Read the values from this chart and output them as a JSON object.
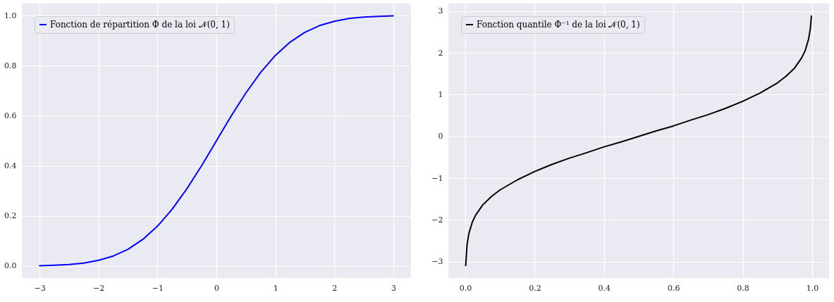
{
  "chart_data": [
    {
      "type": "line",
      "x": [
        -3,
        -2.75,
        -2.5,
        -2.25,
        -2,
        -1.75,
        -1.5,
        -1.25,
        -1,
        -0.75,
        -0.5,
        -0.25,
        0,
        0.25,
        0.5,
        0.75,
        1,
        1.25,
        1.5,
        1.75,
        2,
        2.25,
        2.5,
        2.75,
        3
      ],
      "series": [
        {
          "name": "Fonction de répartition Φ de la loi 𝒩(0, 1)",
          "color": "#0000ff",
          "values": [
            0.001,
            0.003,
            0.006,
            0.012,
            0.023,
            0.04,
            0.067,
            0.106,
            0.159,
            0.227,
            0.309,
            0.401,
            0.5,
            0.599,
            0.691,
            0.773,
            0.841,
            0.894,
            0.933,
            0.96,
            0.977,
            0.988,
            0.994,
            0.997,
            0.999
          ]
        }
      ],
      "xlim": [
        -3.3,
        3.3
      ],
      "ylim": [
        -0.048,
        1.048
      ],
      "xticks": [
        {
          "value": -3,
          "label": "−3"
        },
        {
          "value": -2,
          "label": "−2"
        },
        {
          "value": -1,
          "label": "−1"
        },
        0,
        1,
        2,
        3
      ],
      "yticks": [
        {
          "value": 0,
          "label": "0.0"
        },
        0.2,
        0.4,
        0.6,
        0.8,
        {
          "value": 1,
          "label": "1.0"
        }
      ],
      "grid": true,
      "legend": "top left",
      "marker": "none",
      "line_style": "solid"
    },
    {
      "type": "line",
      "x": [
        0.001,
        0.005,
        0.01,
        0.02,
        0.03,
        0.05,
        0.075,
        0.1,
        0.15,
        0.2,
        0.25,
        0.3,
        0.35,
        0.4,
        0.45,
        0.5,
        0.55,
        0.6,
        0.65,
        0.7,
        0.75,
        0.8,
        0.85,
        0.9,
        0.925,
        0.95,
        0.97,
        0.98,
        0.99,
        0.995,
        0.998
      ],
      "series": [
        {
          "name": "Fonction quantile Φ⁻¹ de la loi 𝒩(0, 1)",
          "color": "#000000",
          "values": [
            -3.09,
            -2.58,
            -2.33,
            -2.05,
            -1.88,
            -1.64,
            -1.44,
            -1.28,
            -1.04,
            -0.84,
            -0.67,
            -0.52,
            -0.39,
            -0.25,
            -0.13,
            0,
            0.13,
            0.25,
            0.39,
            0.52,
            0.67,
            0.84,
            1.04,
            1.28,
            1.44,
            1.64,
            1.88,
            2.05,
            2.33,
            2.58,
            2.88
          ]
        }
      ],
      "xlim": [
        -0.049,
        1.049
      ],
      "ylim": [
        -3.39,
        3.18
      ],
      "xticks": [
        {
          "value": 0,
          "label": "0.0"
        },
        0.2,
        0.4,
        0.6,
        0.8,
        {
          "value": 1,
          "label": "1.0"
        }
      ],
      "yticks": [
        {
          "value": -3,
          "label": "−3"
        },
        {
          "value": -2,
          "label": "−2"
        },
        {
          "value": -1,
          "label": "−1"
        },
        0,
        1,
        2,
        3
      ],
      "grid": true,
      "legend": "top left",
      "marker": "none",
      "line_style": "solid"
    }
  ]
}
